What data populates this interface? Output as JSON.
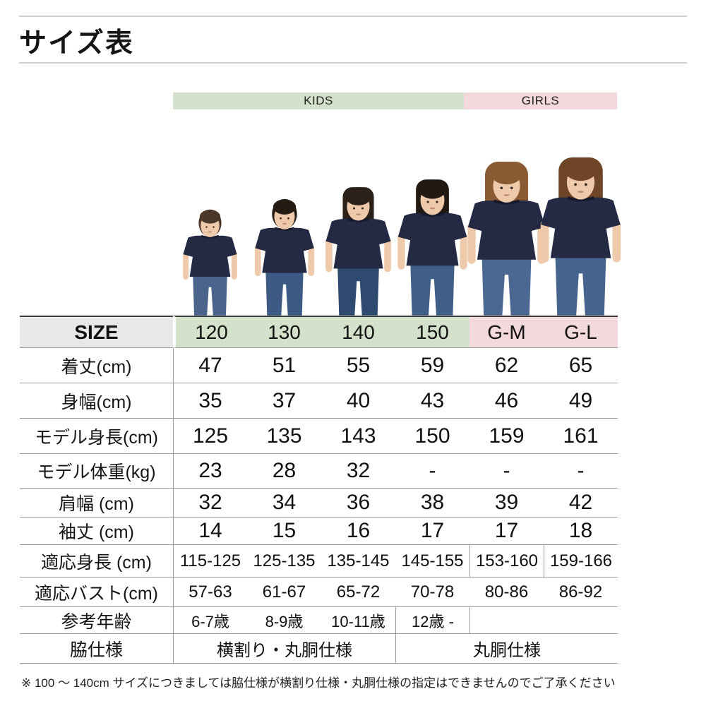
{
  "page": {
    "title": "サイズ表",
    "footnote": "※ 100 ～ 140cm サイズにつきましては脇仕様が横割り仕様・丸胴仕様の指定はできませんのでご了承ください"
  },
  "colors": {
    "kids_bg": "#d5e2cb",
    "girls_bg": "#f4d9dc",
    "size_header_bg": "#e8e8e8"
  },
  "groups": [
    {
      "label": "KIDS",
      "span": 4
    },
    {
      "label": "GIRLS",
      "span": 2
    }
  ],
  "size_chart": {
    "size_header_label": "SIZE",
    "sizes": [
      "120",
      "130",
      "140",
      "150",
      "G-M",
      "G-L"
    ],
    "rows": [
      {
        "label": "着丈(cm)",
        "values": [
          "47",
          "51",
          "55",
          "59",
          "62",
          "65"
        ]
      },
      {
        "label": "身幅(cm)",
        "values": [
          "35",
          "37",
          "40",
          "43",
          "46",
          "49"
        ]
      },
      {
        "label": "モデル身長(cm)",
        "values": [
          "125",
          "135",
          "143",
          "150",
          "159",
          "161"
        ]
      },
      {
        "label": "モデル体重(kg)",
        "values": [
          "23",
          "28",
          "32",
          "-",
          "-",
          "-"
        ]
      },
      {
        "label": "肩幅 (cm)",
        "values": [
          "32",
          "34",
          "36",
          "38",
          "39",
          "42"
        ]
      },
      {
        "label": "袖丈 (cm)",
        "values": [
          "14",
          "15",
          "16",
          "17",
          "17",
          "18"
        ]
      },
      {
        "label": "適応身長 (cm)",
        "values": [
          "115-125",
          "125-135",
          "135-145",
          "145-155",
          "153-160",
          "159-166"
        ]
      },
      {
        "label": "適応バスト(cm)",
        "values": [
          "57-63",
          "61-67",
          "65-72",
          "70-78",
          "80-86",
          "86-92"
        ]
      },
      {
        "label": "参考年齢",
        "values": [
          "6-7歳",
          "8-9歳",
          "10-11歳",
          "12歳 -",
          "",
          ""
        ]
      },
      {
        "label": "脇仕様",
        "merged": [
          {
            "text": "横割り・丸胴仕様",
            "span": 3
          },
          {
            "text": "丸胴仕様",
            "span": 3
          }
        ]
      }
    ]
  },
  "models": [
    {
      "size": "120",
      "type": "boy"
    },
    {
      "size": "130",
      "type": "boy"
    },
    {
      "size": "140",
      "type": "girl"
    },
    {
      "size": "150",
      "type": "girl"
    },
    {
      "size": "G-M",
      "type": "woman"
    },
    {
      "size": "G-L",
      "type": "woman"
    }
  ]
}
